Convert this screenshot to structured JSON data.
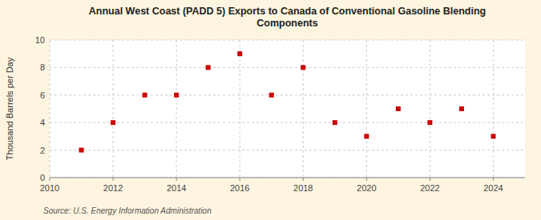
{
  "chart_data": {
    "type": "scatter",
    "title": "Annual West Coast (PADD 5) Exports to Canada of Conventional Gasoline Blending\nComponents",
    "ylabel": "Thousand Barrels per Day",
    "source": "Source: U.S. Energy Information Administration",
    "x": [
      2011,
      2012,
      2013,
      2014,
      2015,
      2016,
      2017,
      2018,
      2019,
      2020,
      2021,
      2022,
      2023,
      2024
    ],
    "values": [
      2.0,
      4.0,
      6.0,
      6.0,
      8.0,
      9.0,
      6.0,
      8.0,
      4.0,
      3.0,
      5.0,
      4.0,
      5.0,
      3.0
    ],
    "color": "#cc0000",
    "marker": "square",
    "xlim": [
      2010,
      2025
    ],
    "ylim": [
      0,
      10
    ],
    "xticks": [
      2010,
      2012,
      2014,
      2016,
      2018,
      2020,
      2022,
      2024
    ],
    "yticks": [
      0,
      2,
      4,
      6,
      8,
      10
    ],
    "grid": true
  }
}
